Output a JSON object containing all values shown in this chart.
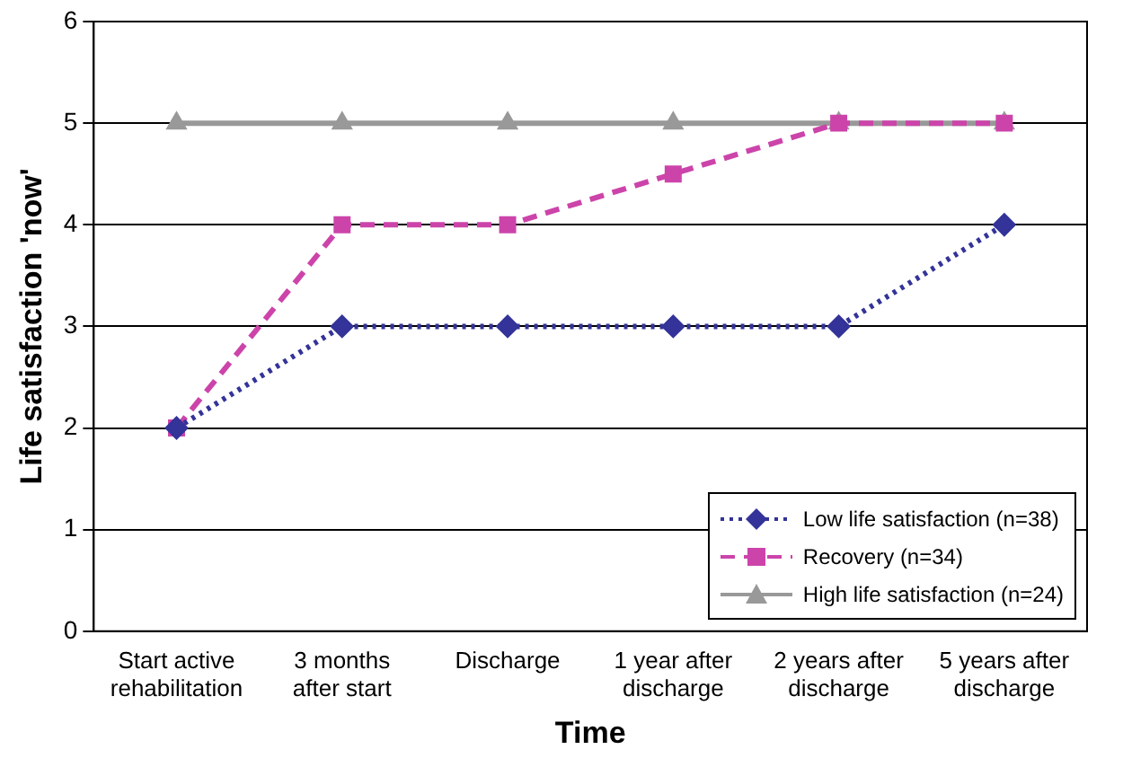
{
  "chart_data": {
    "type": "line",
    "xlabel": "Time",
    "ylabel": "Life satisfaction 'now'",
    "categories": [
      "Start active rehabilitation",
      "3 months after start",
      "Discharge",
      "1 year after discharge",
      "2 years after discharge",
      "5 years after discharge"
    ],
    "series": [
      {
        "name": "Low life satisfaction (n=38)",
        "color": "#333399",
        "marker": "diamond",
        "line_style": "dotted",
        "values": [
          2,
          3,
          3,
          3,
          3,
          4
        ]
      },
      {
        "name": "Recovery (n=34)",
        "color": "#cc44aa",
        "marker": "square",
        "line_style": "dashed",
        "values": [
          2,
          4,
          4,
          4.5,
          5,
          5
        ]
      },
      {
        "name": "High life satisfaction (n=24)",
        "color": "#999999",
        "marker": "triangle",
        "line_style": "solid",
        "values": [
          5,
          5,
          5,
          5,
          5,
          5
        ]
      }
    ],
    "ylim": [
      0,
      6
    ],
    "yticks": [
      0,
      1,
      2,
      3,
      4,
      5,
      6
    ],
    "grid": "y",
    "legend": "bottom right"
  }
}
